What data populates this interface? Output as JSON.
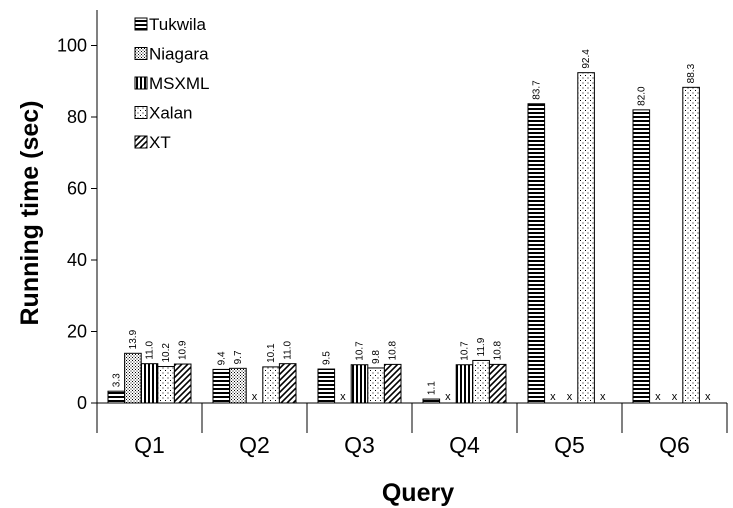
{
  "chart_data": {
    "type": "bar",
    "xlabel": "Query",
    "ylabel": "Running time (sec)",
    "ylim": [
      0,
      110
    ],
    "yticks": [
      0,
      20,
      40,
      60,
      80,
      100
    ],
    "categories": [
      "Q1",
      "Q2",
      "Q3",
      "Q4",
      "Q5",
      "Q6"
    ],
    "series": [
      {
        "name": "Tukwila",
        "pattern": "horizontal-lines",
        "values": [
          3.3,
          9.4,
          9.5,
          1.1,
          83.7,
          82.0
        ],
        "labels": [
          "3.3",
          "9.4",
          "9.5",
          "1.1",
          "83.7",
          "82.0"
        ]
      },
      {
        "name": "Niagara",
        "pattern": "dense-dots",
        "values": [
          13.9,
          9.7,
          null,
          null,
          null,
          null
        ],
        "labels": [
          "13.9",
          "9.7",
          "x",
          "x",
          "x",
          "x"
        ]
      },
      {
        "name": "MSXML",
        "pattern": "vertical-lines",
        "values": [
          11.0,
          null,
          10.7,
          10.7,
          null,
          null
        ],
        "labels": [
          "11.0",
          "x",
          "10.7",
          "10.7",
          "x",
          "x"
        ]
      },
      {
        "name": "Xalan",
        "pattern": "sparse-dots",
        "values": [
          10.2,
          10.1,
          9.8,
          11.9,
          92.4,
          88.3
        ],
        "labels": [
          "10.2",
          "10.1",
          "9.8",
          "11.9",
          "92.4",
          "88.3"
        ]
      },
      {
        "name": "XT",
        "pattern": "diagonal-lines",
        "values": [
          10.9,
          11.0,
          10.8,
          10.8,
          null,
          null
        ],
        "labels": [
          "10.9",
          "11.0",
          "10.8",
          "10.8",
          "x",
          "x"
        ]
      }
    ],
    "legend_position": "top-left",
    "grid": false
  }
}
